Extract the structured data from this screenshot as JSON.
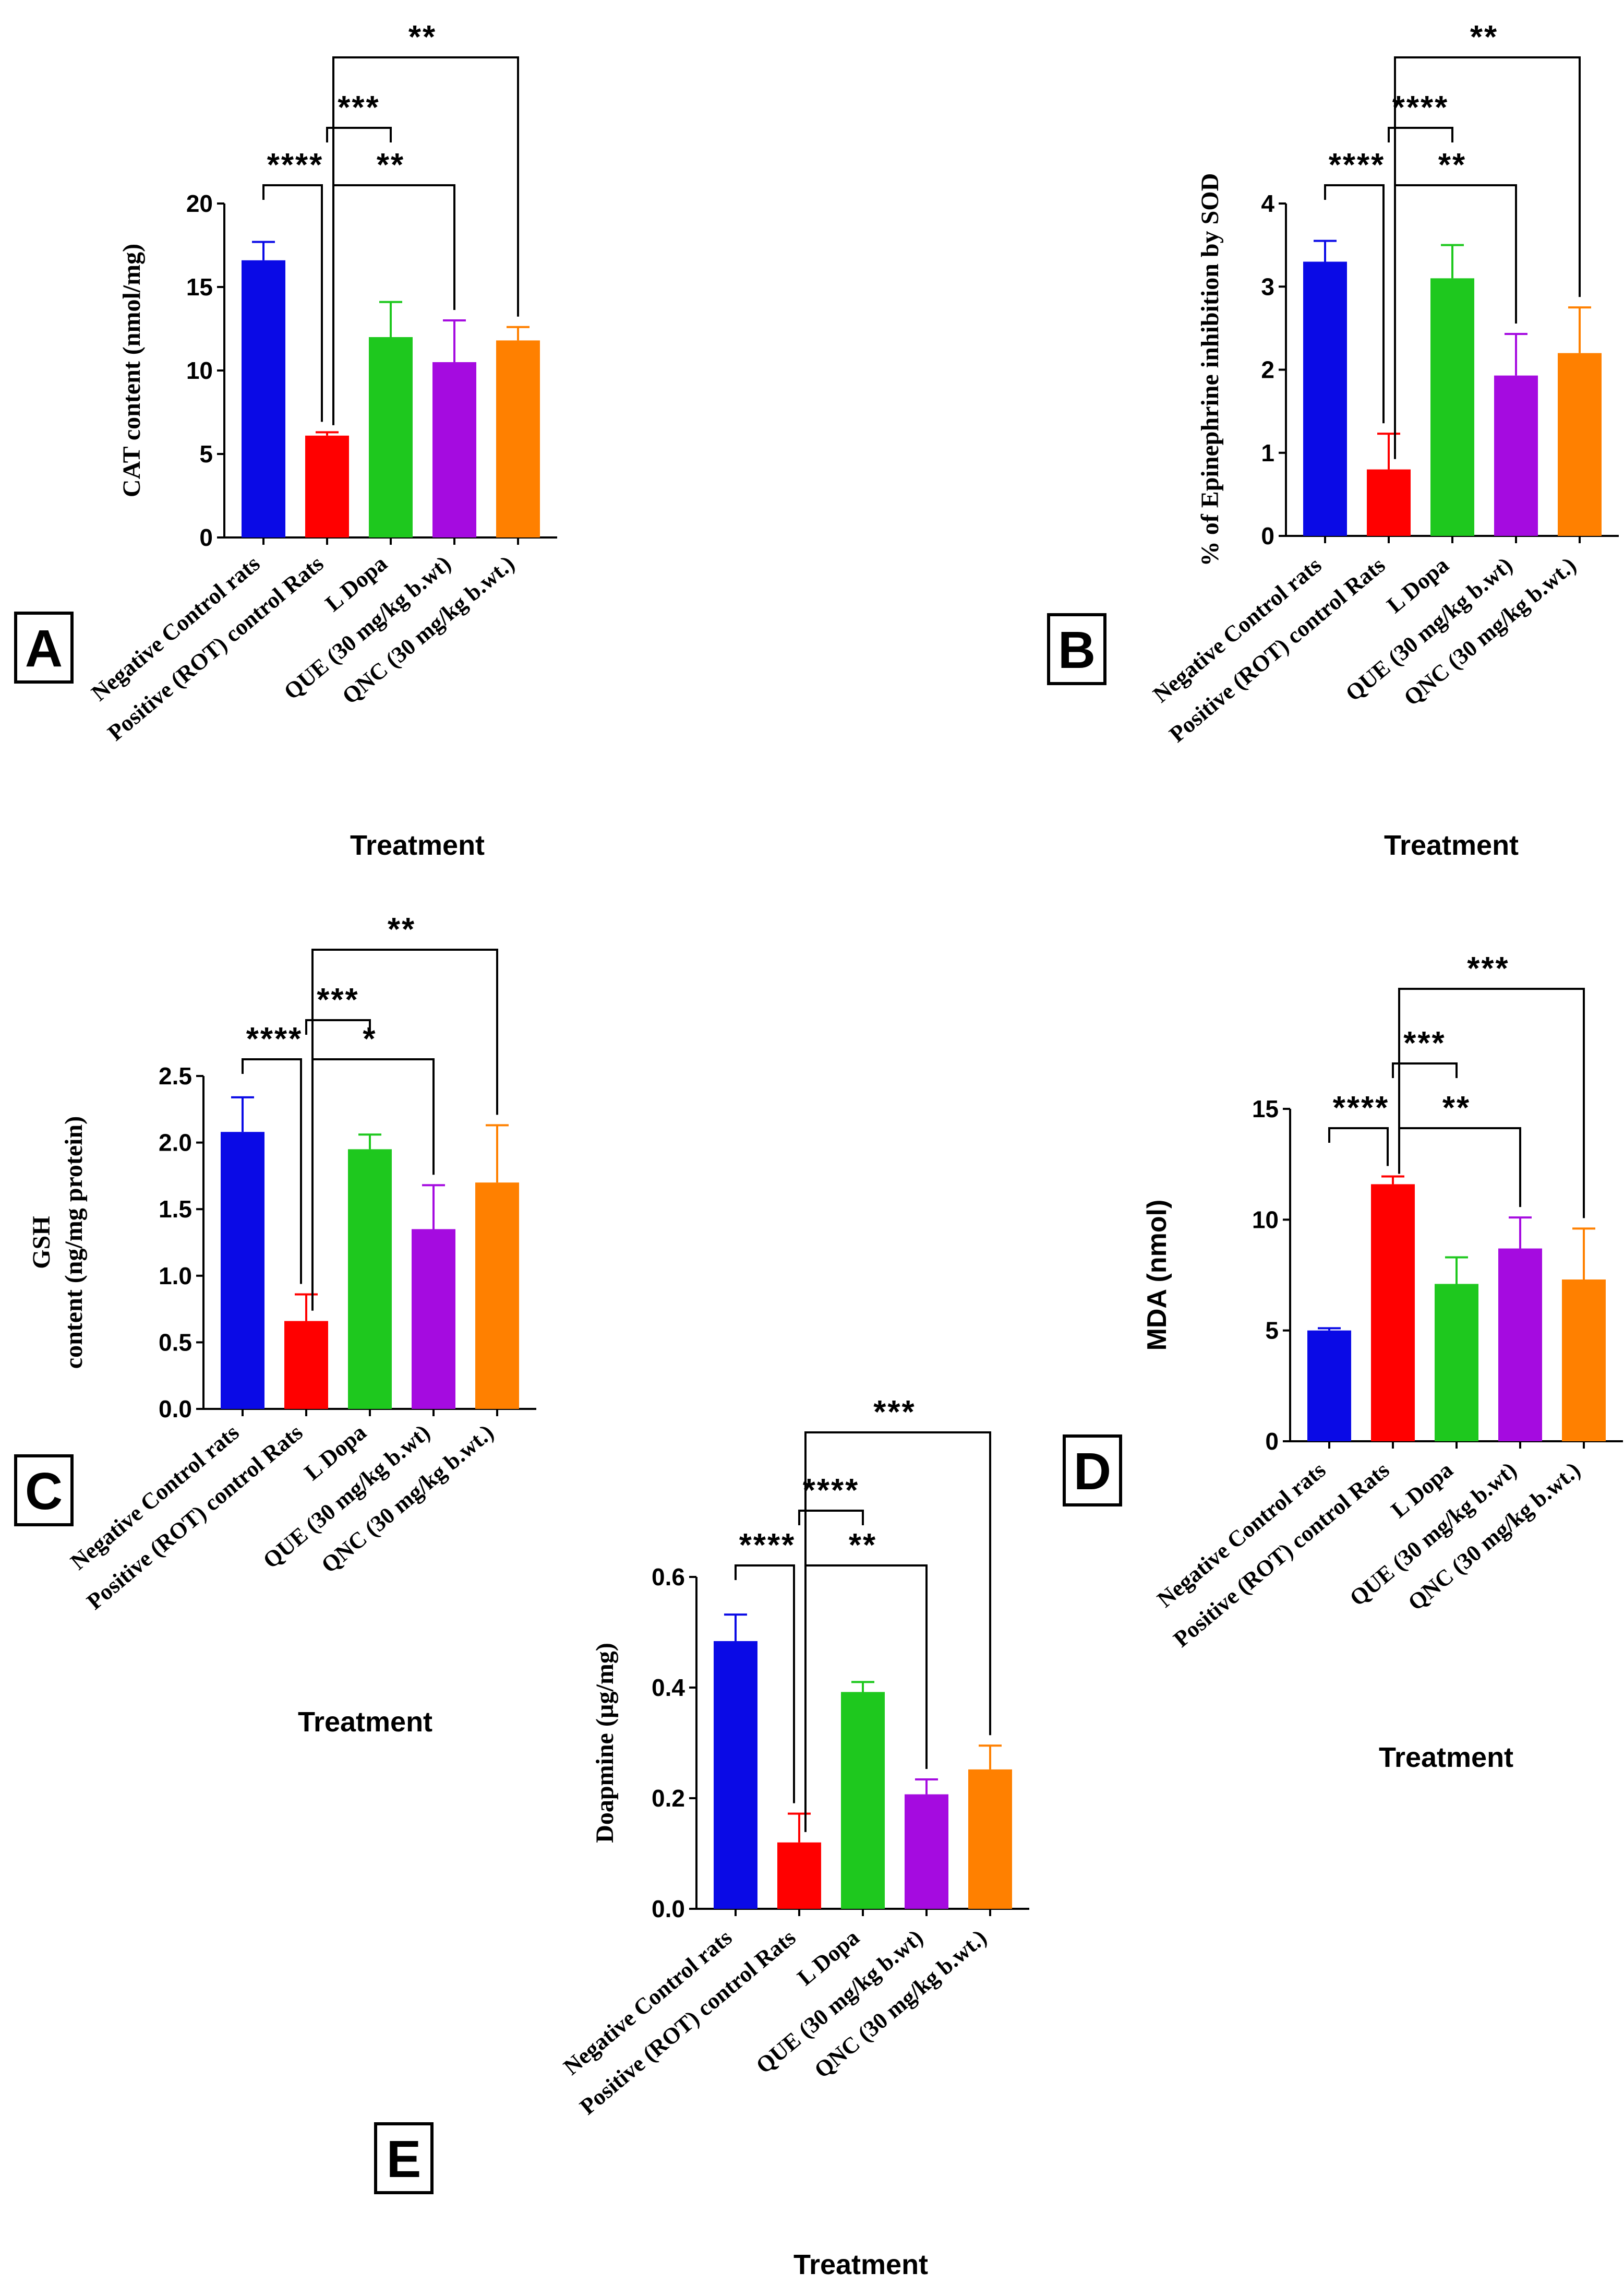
{
  "chart_data": [
    {
      "panel": "A",
      "type": "bar",
      "categories": [
        "Negative Control rats",
        "Positive (ROT) control Rats",
        "L Dopa",
        "QUE (30 mg/kg b.wt)",
        "QNC (30 mg/kg b.wt.)"
      ],
      "values": [
        16.6,
        6.1,
        12.0,
        10.5,
        11.8
      ],
      "errors": [
        1.1,
        0.2,
        2.1,
        2.5,
        0.8
      ],
      "colors": [
        "#0a0ae6",
        "#ff0000",
        "#1ec81e",
        "#a50be0",
        "#ff8000"
      ],
      "ylabel": "CAT content (nmol/mg)",
      "xlabel": "Treatment",
      "ylim": [
        0,
        20
      ],
      "yticks": [
        "0",
        "5",
        "10",
        "15",
        "20"
      ],
      "annotations": [
        {
          "from": 0,
          "to": 1,
          "label": "****"
        },
        {
          "from": 1,
          "to": 2,
          "label": "***"
        },
        {
          "from": 1,
          "to": 3,
          "label": "**"
        },
        {
          "from": 1,
          "to": 4,
          "label": "**"
        }
      ]
    },
    {
      "panel": "B",
      "type": "bar",
      "categories": [
        "Negative Control rats",
        "Positive (ROT) control Rats",
        "L Dopa",
        "QUE (30 mg/kg b.wt)",
        "QNC (30 mg/kg b.wt.)"
      ],
      "values": [
        3.3,
        0.8,
        3.1,
        1.93,
        2.2
      ],
      "errors": [
        0.25,
        0.43,
        0.4,
        0.5,
        0.55
      ],
      "colors": [
        "#0a0ae6",
        "#ff0000",
        "#1ec81e",
        "#a50be0",
        "#ff8000"
      ],
      "ylabel": "% of Epinephrine inhibition by SOD",
      "xlabel": "Treatment",
      "ylim": [
        0,
        4
      ],
      "yticks": [
        "0",
        "1",
        "2",
        "3",
        "4"
      ],
      "annotations": [
        {
          "from": 0,
          "to": 1,
          "label": "****"
        },
        {
          "from": 1,
          "to": 2,
          "label": "****"
        },
        {
          "from": 1,
          "to": 3,
          "label": "**"
        },
        {
          "from": 1,
          "to": 4,
          "label": "**"
        }
      ]
    },
    {
      "panel": "C",
      "type": "bar",
      "categories": [
        "Negative Control rats",
        "Positive (ROT) control Rats",
        "L Dopa",
        "QUE (30 mg/kg b.wt)",
        "QNC (30 mg/kg b.wt.)"
      ],
      "values": [
        2.08,
        0.66,
        1.95,
        1.35,
        1.7
      ],
      "errors": [
        0.26,
        0.2,
        0.11,
        0.33,
        0.43
      ],
      "colors": [
        "#0a0ae6",
        "#ff0000",
        "#1ec81e",
        "#a50be0",
        "#ff8000"
      ],
      "ylabel": "GSH",
      "ylabel2": "content (ng/mg protein)",
      "xlabel": "Treatment",
      "ylim": [
        0,
        2.5
      ],
      "yticks": [
        "0.0",
        "0.5",
        "1.0",
        "1.5",
        "2.0",
        "2.5"
      ],
      "annotations": [
        {
          "from": 0,
          "to": 1,
          "label": "****"
        },
        {
          "from": 1,
          "to": 2,
          "label": "***"
        },
        {
          "from": 1,
          "to": 3,
          "label": "*"
        },
        {
          "from": 1,
          "to": 4,
          "label": "**"
        }
      ]
    },
    {
      "panel": "D",
      "type": "bar",
      "categories": [
        "Negative Control rats",
        "Positive (ROT) control Rats",
        "L Dopa",
        "QUE (30 mg/kg b.wt)",
        "QNC (30 mg/kg b.wt.)"
      ],
      "values": [
        5.0,
        11.6,
        7.1,
        8.7,
        7.3
      ],
      "errors": [
        0.1,
        0.35,
        1.2,
        1.4,
        2.3
      ],
      "colors": [
        "#0a0ae6",
        "#ff0000",
        "#1ec81e",
        "#a50be0",
        "#ff8000"
      ],
      "ylabel": "MDA (nmol)",
      "xlabel": "Treatment",
      "ylim": [
        0,
        15
      ],
      "yticks": [
        "0",
        "5",
        "10",
        "15"
      ],
      "annotations": [
        {
          "from": 0,
          "to": 1,
          "label": "****"
        },
        {
          "from": 1,
          "to": 2,
          "label": "***"
        },
        {
          "from": 1,
          "to": 3,
          "label": "**"
        },
        {
          "from": 1,
          "to": 4,
          "label": "***"
        }
      ]
    },
    {
      "panel": "E",
      "type": "bar",
      "categories": [
        "Negative Control rats",
        "Positive (ROT) control Rats",
        "L Dopa",
        "QUE (30 mg/kg b.wt)",
        "QNC (30 mg/kg b.wt.)"
      ],
      "values": [
        0.484,
        0.12,
        0.392,
        0.207,
        0.252
      ],
      "errors": [
        0.048,
        0.052,
        0.018,
        0.027,
        0.043
      ],
      "colors": [
        "#0a0ae6",
        "#ff0000",
        "#1ec81e",
        "#a50be0",
        "#ff8000"
      ],
      "ylabel": "Doapmine (µg/mg)",
      "xlabel": "Treatment",
      "ylim": [
        0,
        0.6
      ],
      "yticks": [
        "0.0",
        "0.2",
        "0.4",
        "0.6"
      ],
      "annotations": [
        {
          "from": 0,
          "to": 1,
          "label": "****"
        },
        {
          "from": 1,
          "to": 2,
          "label": "****"
        },
        {
          "from": 1,
          "to": 3,
          "label": "**"
        },
        {
          "from": 1,
          "to": 4,
          "label": "***"
        }
      ]
    }
  ]
}
